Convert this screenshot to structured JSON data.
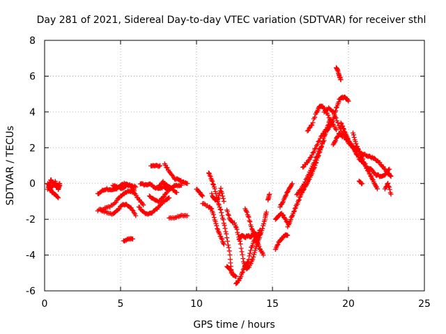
{
  "chart_data": {
    "type": "scatter",
    "title": "Day 281 of 2021, Sidereal Day-to-day VTEC variation (SDTVAR) for receiver sthl",
    "xlabel": "GPS time / hours",
    "ylabel": "SDTVAR / TECUs",
    "xlim": [
      0,
      25
    ],
    "ylim": [
      -6,
      8
    ],
    "xticks": [
      "0",
      "5",
      "10",
      "15",
      "20",
      "25"
    ],
    "yticks": [
      "-6",
      "-4",
      "-2",
      "0",
      "2",
      "4",
      "6",
      "8"
    ],
    "grid": true,
    "marker": "plus",
    "color": "#ff0000",
    "tracks": [
      [
        [
          0.2,
          0.0
        ],
        [
          0.35,
          -0.3
        ],
        [
          0.5,
          -0.5
        ],
        [
          0.7,
          -0.6
        ],
        [
          0.9,
          -0.8
        ]
      ],
      [
        [
          0.2,
          -0.3
        ],
        [
          0.4,
          0.2
        ],
        [
          0.6,
          0.0
        ],
        [
          0.8,
          -0.2
        ],
        [
          1.0,
          0.0
        ]
      ],
      [
        [
          0.3,
          -0.1
        ],
        [
          0.5,
          -0.2
        ],
        [
          0.7,
          0.1
        ],
        [
          0.9,
          -0.3
        ],
        [
          1.0,
          -0.1
        ]
      ],
      [
        [
          3.5,
          -0.6
        ],
        [
          3.8,
          -0.4
        ],
        [
          4.1,
          -0.3
        ],
        [
          4.4,
          -0.4
        ],
        [
          4.7,
          -0.3
        ],
        [
          5.0,
          -0.1
        ],
        [
          5.3,
          0.0
        ],
        [
          5.6,
          -0.1
        ],
        [
          5.9,
          -0.4
        ]
      ],
      [
        [
          3.5,
          -1.5
        ],
        [
          3.9,
          -1.4
        ],
        [
          4.3,
          -1.3
        ],
        [
          4.7,
          -1.0
        ],
        [
          5.0,
          -0.7
        ],
        [
          5.3,
          -0.5
        ],
        [
          5.6,
          -0.4
        ],
        [
          5.9,
          -0.5
        ],
        [
          6.2,
          -0.9
        ],
        [
          6.5,
          -1.2
        ]
      ],
      [
        [
          3.7,
          -1.5
        ],
        [
          4.1,
          -1.6
        ],
        [
          4.5,
          -1.7
        ],
        [
          4.8,
          -1.5
        ],
        [
          5.1,
          -1.2
        ],
        [
          5.4,
          -1.2
        ],
        [
          5.7,
          -1.4
        ],
        [
          6.0,
          -1.8
        ]
      ],
      [
        [
          4.5,
          -0.1
        ],
        [
          4.8,
          -0.2
        ],
        [
          5.1,
          -0.3
        ],
        [
          5.4,
          -0.1
        ],
        [
          5.7,
          -0.1
        ],
        [
          6.0,
          -0.2
        ]
      ],
      [
        [
          5.2,
          -3.2
        ],
        [
          5.5,
          -3.1
        ],
        [
          5.8,
          -3.1
        ]
      ],
      [
        [
          6.2,
          -1.3
        ],
        [
          6.5,
          -1.6
        ],
        [
          6.8,
          -1.7
        ],
        [
          7.1,
          -1.6
        ],
        [
          7.4,
          -1.4
        ],
        [
          7.7,
          -1.1
        ],
        [
          8.0,
          -0.9
        ],
        [
          8.2,
          -0.8
        ]
      ],
      [
        [
          6.3,
          0.0
        ],
        [
          6.6,
          -0.1
        ],
        [
          6.9,
          0.0
        ],
        [
          7.2,
          -0.2
        ],
        [
          7.5,
          -0.3
        ],
        [
          7.8,
          -0.2
        ],
        [
          8.1,
          -0.3
        ]
      ],
      [
        [
          6.9,
          -0.7
        ],
        [
          7.2,
          -0.9
        ],
        [
          7.5,
          -1.0
        ],
        [
          7.8,
          -0.8
        ],
        [
          8.1,
          -0.4
        ],
        [
          8.4,
          -0.2
        ],
        [
          8.7,
          -0.1
        ],
        [
          9.0,
          -0.1
        ]
      ],
      [
        [
          7.0,
          1.0
        ],
        [
          7.3,
          1.0
        ],
        [
          7.6,
          1.0
        ]
      ],
      [
        [
          7.9,
          1.1
        ],
        [
          8.2,
          0.7
        ],
        [
          8.5,
          0.3
        ],
        [
          8.8,
          0.2
        ],
        [
          9.1,
          0.1
        ],
        [
          9.4,
          0.0
        ]
      ],
      [
        [
          7.5,
          -0.2
        ],
        [
          7.8,
          0.1
        ],
        [
          8.1,
          -0.1
        ],
        [
          8.4,
          -0.3
        ],
        [
          8.7,
          -0.5
        ]
      ],
      [
        [
          8.2,
          -1.9
        ],
        [
          8.6,
          -1.9
        ],
        [
          9.0,
          -1.8
        ],
        [
          9.4,
          -1.8
        ]
      ],
      [
        [
          10.0,
          -0.3
        ],
        [
          10.2,
          -0.5
        ],
        [
          10.4,
          -0.7
        ]
      ],
      [
        [
          10.4,
          -1.1
        ],
        [
          10.8,
          -1.3
        ],
        [
          11.0,
          -1.4
        ],
        [
          11.2,
          -2.0
        ],
        [
          11.4,
          -2.6
        ],
        [
          11.6,
          -3.0
        ],
        [
          11.8,
          -3.4
        ]
      ],
      [
        [
          10.8,
          0.6
        ],
        [
          11.0,
          0.2
        ],
        [
          11.2,
          -0.3
        ],
        [
          11.4,
          -1.0
        ],
        [
          11.6,
          -1.5
        ],
        [
          11.8,
          -2.2
        ],
        [
          12.0,
          -3.0
        ],
        [
          12.2,
          -4.0
        ],
        [
          12.3,
          -5.0
        ]
      ],
      [
        [
          11.0,
          -0.6
        ],
        [
          11.2,
          -0.9
        ],
        [
          11.4,
          -0.9
        ],
        [
          11.6,
          -0.3
        ],
        [
          11.8,
          -1.0
        ]
      ],
      [
        [
          12.0,
          -4.6
        ],
        [
          12.2,
          -4.8
        ],
        [
          12.4,
          -5.1
        ],
        [
          12.6,
          -5.2
        ]
      ],
      [
        [
          12.5,
          -2.2
        ],
        [
          12.7,
          -2.7
        ],
        [
          12.9,
          -3.4
        ],
        [
          13.1,
          -4.4
        ],
        [
          13.3,
          -4.8
        ],
        [
          13.5,
          -4.6
        ],
        [
          13.7,
          -4.2
        ],
        [
          13.9,
          -3.6
        ],
        [
          14.1,
          -3.1
        ],
        [
          14.3,
          -2.6
        ],
        [
          14.5,
          -2.0
        ],
        [
          14.6,
          -1.6
        ]
      ],
      [
        [
          12.6,
          -5.6
        ],
        [
          12.8,
          -5.4
        ],
        [
          13.0,
          -5.0
        ],
        [
          13.2,
          -4.6
        ],
        [
          13.4,
          -4.4
        ],
        [
          13.6,
          -3.6
        ],
        [
          13.8,
          -3.2
        ],
        [
          14.0,
          -3.0
        ],
        [
          14.2,
          -2.8
        ]
      ],
      [
        [
          12.8,
          -3.1
        ],
        [
          13.0,
          -2.9
        ],
        [
          13.2,
          -3.0
        ],
        [
          13.4,
          -2.9
        ],
        [
          13.6,
          -3.0
        ],
        [
          13.8,
          -2.7
        ],
        [
          14.0,
          -2.9
        ],
        [
          14.2,
          -2.6
        ]
      ],
      [
        [
          13.2,
          -1.4
        ],
        [
          13.4,
          -1.8
        ],
        [
          13.6,
          -2.4
        ],
        [
          13.8,
          -2.9
        ],
        [
          14.0,
          -3.3
        ],
        [
          14.2,
          -3.7
        ],
        [
          14.4,
          -4.0
        ]
      ],
      [
        [
          12.0,
          -1.5
        ],
        [
          12.2,
          -2.0
        ],
        [
          12.4,
          -2.2
        ]
      ],
      [
        [
          14.7,
          -0.9
        ],
        [
          14.8,
          -0.6
        ]
      ],
      [
        [
          15.2,
          -3.7
        ],
        [
          15.4,
          -3.3
        ],
        [
          15.6,
          -3.1
        ],
        [
          15.8,
          -2.9
        ],
        [
          16.0,
          -2.9
        ]
      ],
      [
        [
          15.2,
          -2.0
        ],
        [
          15.4,
          -1.8
        ],
        [
          15.6,
          -1.7
        ],
        [
          15.8,
          -1.9
        ],
        [
          16.0,
          -2.2
        ]
      ],
      [
        [
          15.5,
          -1.3
        ],
        [
          15.7,
          -1.0
        ],
        [
          15.9,
          -0.6
        ],
        [
          16.1,
          -0.3
        ],
        [
          16.3,
          0.0
        ]
      ],
      [
        [
          16.0,
          -2.4
        ],
        [
          16.2,
          -2.0
        ],
        [
          16.4,
          -1.6
        ],
        [
          16.6,
          -1.2
        ],
        [
          16.8,
          -0.8
        ],
        [
          17.0,
          -0.4
        ],
        [
          17.2,
          -0.1
        ],
        [
          17.4,
          0.2
        ],
        [
          17.6,
          0.6
        ],
        [
          17.8,
          1.0
        ],
        [
          18.0,
          1.5
        ],
        [
          18.2,
          2.0
        ],
        [
          18.4,
          2.6
        ],
        [
          18.6,
          3.1
        ],
        [
          18.8,
          3.6
        ]
      ],
      [
        [
          16.6,
          -0.6
        ],
        [
          16.9,
          -0.3
        ],
        [
          17.2,
          0.2
        ],
        [
          17.5,
          0.7
        ],
        [
          17.8,
          1.3
        ],
        [
          18.1,
          1.9
        ],
        [
          18.4,
          2.4
        ]
      ],
      [
        [
          17.0,
          0.9
        ],
        [
          17.3,
          1.2
        ],
        [
          17.6,
          1.6
        ],
        [
          17.9,
          2.1
        ],
        [
          18.2,
          2.6
        ],
        [
          18.5,
          3.0
        ]
      ],
      [
        [
          17.3,
          2.9
        ],
        [
          17.6,
          3.3
        ],
        [
          17.9,
          4.0
        ],
        [
          18.1,
          4.3
        ],
        [
          18.3,
          4.3
        ],
        [
          18.6,
          3.9
        ],
        [
          18.9,
          3.4
        ],
        [
          19.2,
          3.0
        ]
      ],
      [
        [
          18.6,
          3.0
        ],
        [
          18.8,
          3.2
        ],
        [
          19.0,
          3.6
        ],
        [
          19.2,
          4.2
        ],
        [
          19.4,
          4.7
        ],
        [
          19.6,
          4.8
        ],
        [
          19.8,
          4.8
        ],
        [
          20.0,
          4.6
        ]
      ],
      [
        [
          19.2,
          6.5
        ],
        [
          19.3,
          6.3
        ],
        [
          19.4,
          6.0
        ],
        [
          19.5,
          5.8
        ]
      ],
      [
        [
          18.4,
          4.0
        ],
        [
          18.7,
          4.2
        ],
        [
          19.0,
          4.0
        ],
        [
          19.3,
          3.4
        ],
        [
          19.6,
          2.8
        ],
        [
          19.9,
          2.4
        ],
        [
          20.2,
          2.1
        ],
        [
          20.5,
          2.0
        ]
      ],
      [
        [
          19.0,
          2.2
        ],
        [
          19.2,
          2.5
        ],
        [
          19.4,
          2.8
        ],
        [
          19.6,
          2.6
        ]
      ],
      [
        [
          19.5,
          3.4
        ],
        [
          19.7,
          3.0
        ],
        [
          19.9,
          2.6
        ],
        [
          20.1,
          2.3
        ],
        [
          20.3,
          2.0
        ],
        [
          20.5,
          1.7
        ],
        [
          20.7,
          1.4
        ],
        [
          20.9,
          1.2
        ],
        [
          21.1,
          1.1
        ]
      ],
      [
        [
          20.3,
          2.8
        ],
        [
          20.5,
          2.2
        ],
        [
          20.7,
          1.8
        ],
        [
          20.9,
          1.4
        ],
        [
          21.1,
          1.0
        ],
        [
          21.3,
          0.7
        ],
        [
          21.5,
          0.4
        ],
        [
          21.7,
          0.0
        ],
        [
          21.9,
          -0.3
        ]
      ],
      [
        [
          20.5,
          1.9
        ],
        [
          20.8,
          1.7
        ],
        [
          21.1,
          1.6
        ],
        [
          21.4,
          1.5
        ],
        [
          21.7,
          1.4
        ],
        [
          22.0,
          1.2
        ],
        [
          22.3,
          0.9
        ],
        [
          22.6,
          0.6
        ],
        [
          22.8,
          0.4
        ]
      ],
      [
        [
          21.2,
          0.9
        ],
        [
          21.5,
          0.8
        ],
        [
          21.8,
          0.5
        ],
        [
          22.1,
          0.4
        ],
        [
          22.4,
          0.5
        ],
        [
          22.7,
          0.8
        ]
      ],
      [
        [
          20.7,
          0.1
        ],
        [
          20.9,
          0.0
        ]
      ],
      [
        [
          22.4,
          -0.3
        ],
        [
          22.6,
          0.0
        ],
        [
          22.8,
          -0.6
        ]
      ]
    ]
  }
}
